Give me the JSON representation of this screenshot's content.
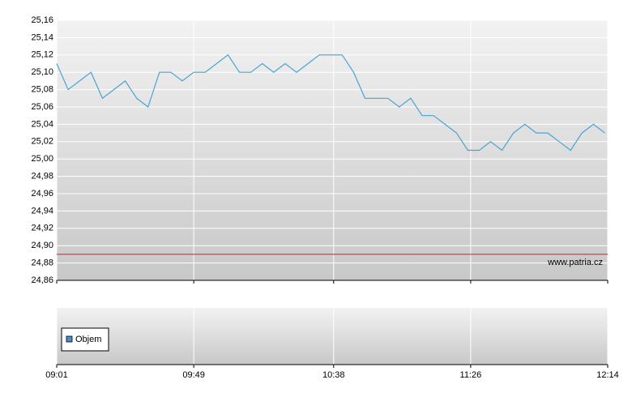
{
  "chart_data": {
    "type": "line",
    "x": [
      "09:01",
      "09:05",
      "09:09",
      "09:13",
      "09:17",
      "09:21",
      "09:25",
      "09:29",
      "09:33",
      "09:37",
      "09:41",
      "09:45",
      "09:49",
      "09:53",
      "09:57",
      "10:01",
      "10:05",
      "10:09",
      "10:13",
      "10:17",
      "10:21",
      "10:25",
      "10:29",
      "10:33",
      "10:37",
      "10:41",
      "10:45",
      "10:49",
      "10:53",
      "10:57",
      "11:01",
      "11:05",
      "11:09",
      "11:13",
      "11:17",
      "11:21",
      "11:25",
      "11:29",
      "11:33",
      "11:37",
      "11:41",
      "11:45",
      "11:49",
      "11:53",
      "11:57",
      "12:01",
      "12:05",
      "12:09",
      "12:13"
    ],
    "series": [
      {
        "color": "#4ba3d3",
        "values": [
          25.11,
          25.08,
          25.09,
          25.1,
          25.07,
          25.08,
          25.09,
          25.07,
          25.06,
          25.1,
          25.1,
          25.09,
          25.1,
          25.1,
          25.11,
          25.12,
          25.1,
          25.1,
          25.11,
          25.1,
          25.11,
          25.1,
          25.11,
          25.12,
          25.12,
          25.12,
          25.1,
          25.07,
          25.07,
          25.07,
          25.06,
          25.07,
          25.05,
          25.05,
          25.04,
          25.03,
          25.01,
          25.01,
          25.02,
          25.01,
          25.03,
          25.04,
          25.03,
          25.03,
          25.02,
          25.01,
          25.03,
          25.04,
          25.03
        ]
      }
    ],
    "xlim": [
      "09:01",
      "12:14"
    ],
    "xticks": [
      "09:01",
      "09:49",
      "10:38",
      "11:26",
      "12:14"
    ],
    "ylim": [
      24.86,
      25.16
    ],
    "yticks": [
      {
        "value": 24.86,
        "label": "24,86"
      },
      {
        "value": 24.88,
        "label": "24,88"
      },
      {
        "value": 24.9,
        "label": "24,90"
      },
      {
        "value": 24.92,
        "label": "24,92"
      },
      {
        "value": 24.94,
        "label": "24,94"
      },
      {
        "value": 24.96,
        "label": "24,96"
      },
      {
        "value": 24.98,
        "label": "24,98"
      },
      {
        "value": 25.0,
        "label": "25,00"
      },
      {
        "value": 25.02,
        "label": "25,02"
      },
      {
        "value": 25.04,
        "label": "25,04"
      },
      {
        "value": 25.06,
        "label": "25,06"
      },
      {
        "value": 25.08,
        "label": "25,08"
      },
      {
        "value": 25.1,
        "label": "25,10"
      },
      {
        "value": 25.12,
        "label": "25,12"
      },
      {
        "value": 25.14,
        "label": "25,14"
      },
      {
        "value": 25.16,
        "label": "25,16"
      }
    ],
    "reference_line": {
      "value": 24.89,
      "color": "#cc2222"
    },
    "grid": true,
    "annotation": "www.patria.cz",
    "volume_panel": {
      "legend": "Objem",
      "color": "#4a90c8"
    }
  }
}
